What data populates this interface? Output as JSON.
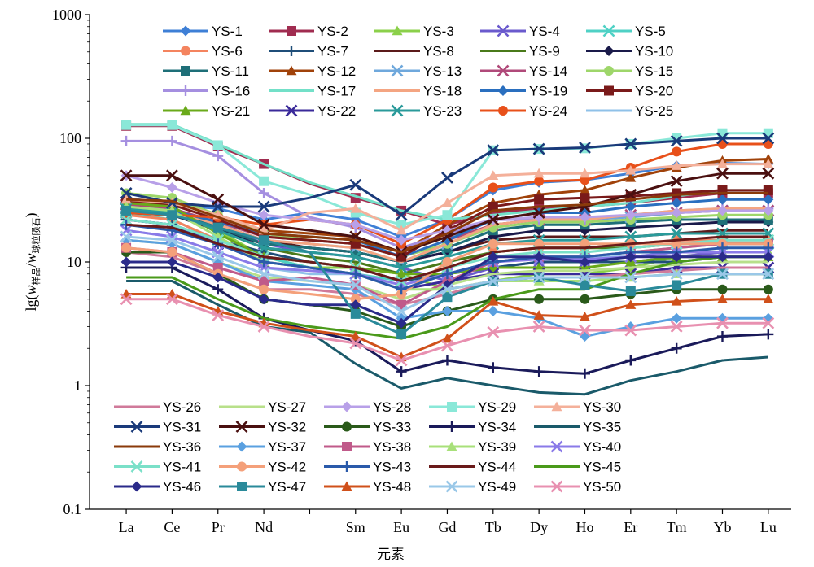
{
  "chart_data": {
    "type": "line",
    "xlabel": "元素",
    "ylabel": {
      "prefix": "lg(",
      "w1": "w",
      "sub1": "样品",
      "slash": "/",
      "w2": "w",
      "sub2": "球粒陨石",
      "suffix": ")"
    },
    "y_scale": "log",
    "ylim": [
      0.1,
      1000
    ],
    "y_ticks": [
      "0.1",
      "1",
      "10",
      "100",
      "1000"
    ],
    "categories": [
      "La",
      "Ce",
      "Pr",
      "Nd",
      "",
      "Sm",
      "Eu",
      "Gd",
      "Tb",
      "Dy",
      "Ho",
      "Er",
      "Tm",
      "Yb",
      "Lu"
    ],
    "x_tick_labels": [
      "La",
      "Ce",
      "Pr",
      "Nd",
      "Sm",
      "Eu",
      "Gd",
      "Tb",
      "Dy",
      "Ho",
      "Er",
      "Tm",
      "Yb",
      "Lu"
    ],
    "grid": false,
    "legend": "top and bottom inside plot",
    "series": [
      {
        "name": "YS-1",
        "color": "#3e7fd6",
        "marker": "diamond",
        "values": [
          33,
          29,
          27,
          22,
          25,
          22,
          16,
          22,
          38,
          44,
          46,
          52,
          60,
          63,
          62
        ]
      },
      {
        "name": "YS-2",
        "color": "#a02c50",
        "marker": "square",
        "values": [
          126,
          126,
          86,
          62,
          43,
          33,
          26,
          20,
          25,
          27,
          28,
          30,
          33,
          36,
          36
        ]
      },
      {
        "name": "YS-3",
        "color": "#8bd04a",
        "marker": "triangle",
        "values": [
          30,
          28,
          18,
          11,
          9,
          9,
          8,
          6,
          7,
          8,
          8,
          9,
          11,
          12,
          12
        ]
      },
      {
        "name": "YS-4",
        "color": "#6a5acd",
        "marker": "x",
        "values": [
          27,
          25,
          20,
          14,
          12,
          11,
          9,
          7,
          9,
          10,
          10,
          10,
          11,
          12,
          12
        ]
      },
      {
        "name": "YS-5",
        "color": "#4fd1c5",
        "marker": "x",
        "values": [
          25,
          22,
          15,
          11,
          9,
          8,
          7,
          8,
          10,
          11,
          11,
          12,
          13,
          14,
          14
        ]
      },
      {
        "name": "YS-6",
        "color": "#f4845f",
        "marker": "circle",
        "values": [
          24,
          22,
          15,
          11,
          10,
          9,
          7,
          9,
          12,
          13,
          13,
          14,
          15,
          15,
          15
        ]
      },
      {
        "name": "YS-7",
        "color": "#1f4e79",
        "marker": "plus",
        "values": [
          22,
          20,
          15,
          12,
          10,
          9,
          7,
          8,
          9,
          10,
          10,
          10,
          10,
          11,
          11
        ]
      },
      {
        "name": "YS-8",
        "color": "#5b1a1a",
        "marker": "none",
        "values": [
          30,
          27,
          20,
          15,
          13,
          12,
          10,
          12,
          15,
          16,
          16,
          16,
          17,
          18,
          18
        ]
      },
      {
        "name": "YS-9",
        "color": "#4a7a1a",
        "marker": "none",
        "values": [
          26,
          25,
          18,
          13,
          11,
          10,
          8,
          10,
          12,
          13,
          13,
          13,
          14,
          14,
          14
        ]
      },
      {
        "name": "YS-10",
        "color": "#1a1a4a",
        "marker": "diamond",
        "values": [
          25,
          24,
          18,
          14,
          13,
          12,
          10,
          12,
          16,
          18,
          18,
          19,
          20,
          21,
          21
        ]
      },
      {
        "name": "YS-11",
        "color": "#1e6f78",
        "marker": "square",
        "values": [
          27,
          26,
          19,
          14,
          13,
          12,
          10,
          13,
          18,
          20,
          20,
          21,
          22,
          22,
          22
        ]
      },
      {
        "name": "YS-12",
        "color": "#a0420a",
        "marker": "triangle",
        "values": [
          32,
          30,
          24,
          18,
          17,
          16,
          12,
          20,
          30,
          35,
          38,
          48,
          58,
          66,
          68
        ]
      },
      {
        "name": "YS-13",
        "color": "#6fa8dc",
        "marker": "x",
        "values": [
          28,
          26,
          20,
          15,
          14,
          13,
          10,
          14,
          20,
          22,
          22,
          23,
          25,
          26,
          26
        ]
      },
      {
        "name": "YS-14",
        "color": "#b04a7a",
        "marker": "x",
        "values": [
          29,
          27,
          21,
          16,
          15,
          14,
          11,
          15,
          20,
          22,
          22,
          24,
          25,
          26,
          26
        ]
      },
      {
        "name": "YS-15",
        "color": "#9ed66a",
        "marker": "circle",
        "values": [
          36,
          33,
          24,
          17,
          15,
          14,
          11,
          14,
          19,
          21,
          21,
          22,
          23,
          24,
          24
        ]
      },
      {
        "name": "YS-16",
        "color": "#a58fe0",
        "marker": "plus",
        "values": [
          95,
          95,
          72,
          36,
          23,
          19,
          13,
          17,
          22,
          22,
          22,
          24,
          26,
          27,
          27
        ]
      },
      {
        "name": "YS-17",
        "color": "#73e0c8",
        "marker": "none",
        "values": [
          130,
          130,
          90,
          62,
          44,
          34,
          26,
          22,
          24,
          26,
          28,
          30,
          34,
          38,
          38
        ]
      },
      {
        "name": "YS-18",
        "color": "#f4a582",
        "marker": "none",
        "values": [
          28,
          26,
          20,
          15,
          14,
          13,
          10,
          14,
          20,
          22,
          22,
          24,
          26,
          27,
          27
        ]
      },
      {
        "name": "YS-19",
        "color": "#2a6fbf",
        "marker": "diamond",
        "values": [
          28,
          26,
          21,
          17,
          16,
          15,
          11,
          15,
          22,
          25,
          25,
          28,
          30,
          32,
          32
        ]
      },
      {
        "name": "YS-20",
        "color": "#7a1a1a",
        "marker": "square",
        "values": [
          31,
          29,
          22,
          16,
          15,
          14,
          11,
          18,
          28,
          32,
          33,
          34,
          36,
          38,
          38
        ]
      },
      {
        "name": "YS-21",
        "color": "#6aaa1a",
        "marker": "triangle",
        "values": [
          30,
          28,
          17,
          11,
          10,
          9,
          8,
          8,
          9,
          9,
          9,
          10,
          11,
          11,
          11
        ]
      },
      {
        "name": "YS-22",
        "color": "#3a2a9a",
        "marker": "x",
        "values": [
          22,
          20,
          14,
          10,
          9,
          8,
          6,
          7,
          8,
          8,
          8,
          8,
          9,
          9,
          9
        ]
      },
      {
        "name": "YS-23",
        "color": "#2a9a9a",
        "marker": "x",
        "values": [
          27,
          25,
          18,
          13,
          12,
          11,
          9,
          11,
          14,
          15,
          15,
          16,
          17,
          17,
          17
        ]
      },
      {
        "name": "YS-24",
        "color": "#e8501a",
        "marker": "circle",
        "values": [
          25,
          24,
          23,
          20,
          22,
          20,
          14,
          22,
          40,
          45,
          46,
          58,
          78,
          90,
          90
        ]
      },
      {
        "name": "YS-25",
        "color": "#8fc1e8",
        "marker": "none",
        "values": [
          18,
          16,
          12,
          9,
          8,
          8,
          6,
          8,
          10,
          11,
          11,
          11,
          12,
          12,
          12
        ]
      },
      {
        "name": "YS-26",
        "color": "#d07a9a",
        "marker": "none",
        "values": [
          12,
          11,
          8,
          6,
          6,
          5.5,
          4.5,
          5.5,
          7,
          7.5,
          7.5,
          8,
          8.5,
          9,
          9
        ]
      },
      {
        "name": "YS-27",
        "color": "#b8e08a",
        "marker": "none",
        "values": [
          15,
          14,
          10,
          7.5,
          7,
          6.5,
          5,
          6.5,
          8,
          8.5,
          8.5,
          9,
          9.5,
          10,
          10
        ]
      },
      {
        "name": "YS-28",
        "color": "#b8a0e8",
        "marker": "diamond",
        "values": [
          50,
          40,
          30,
          24,
          22,
          20,
          15,
          18,
          22,
          23,
          23,
          24,
          25,
          26,
          26
        ]
      },
      {
        "name": "YS-29",
        "color": "#8ae8d8",
        "marker": "square",
        "values": [
          128,
          128,
          88,
          45,
          35,
          25,
          20,
          24,
          80,
          82,
          83,
          90,
          100,
          110,
          110
        ]
      },
      {
        "name": "YS-30",
        "color": "#f4b09a",
        "marker": "triangle",
        "values": [
          32,
          30,
          24,
          18,
          25,
          27,
          18,
          30,
          50,
          52,
          52,
          55,
          60,
          62,
          62
        ]
      },
      {
        "name": "YS-31",
        "color": "#1a3a7a",
        "marker": "x",
        "values": [
          36,
          30,
          28,
          28,
          33,
          42,
          24,
          48,
          80,
          82,
          84,
          90,
          95,
          100,
          100
        ]
      },
      {
        "name": "YS-32",
        "color": "#4a1010",
        "marker": "x",
        "values": [
          50,
          50,
          32,
          20,
          18,
          16,
          12,
          16,
          22,
          25,
          28,
          35,
          45,
          52,
          52
        ]
      },
      {
        "name": "YS-33",
        "color": "#2a5a1a",
        "marker": "circle",
        "values": [
          12,
          12,
          8,
          5,
          4.5,
          4,
          3,
          4,
          5,
          5,
          5,
          5.5,
          6,
          6,
          6
        ]
      },
      {
        "name": "YS-34",
        "color": "#1a1a5a",
        "marker": "plus",
        "values": [
          9,
          9,
          6,
          3.5,
          2.8,
          2.3,
          1.3,
          1.6,
          1.4,
          1.3,
          1.25,
          1.6,
          2,
          2.5,
          2.6
        ]
      },
      {
        "name": "YS-35",
        "color": "#1a5a6a",
        "marker": "none",
        "values": [
          7,
          7,
          4.5,
          3,
          2.7,
          1.5,
          0.95,
          1.15,
          1,
          0.88,
          0.85,
          1.1,
          1.3,
          1.6,
          1.7
        ]
      },
      {
        "name": "YS-36",
        "color": "#8a3a0a",
        "marker": "none",
        "values": [
          32,
          31,
          23,
          17,
          16,
          15,
          12,
          17,
          26,
          28,
          29,
          32,
          35,
          36,
          36
        ]
      },
      {
        "name": "YS-37",
        "color": "#5aa0e0",
        "marker": "diamond",
        "values": [
          15,
          14,
          10,
          7,
          6.5,
          6,
          3.5,
          4,
          4,
          3.5,
          2.5,
          3,
          3.5,
          3.5,
          3.5
        ]
      },
      {
        "name": "YS-38",
        "color": "#c05a8a",
        "marker": "square",
        "values": [
          13,
          12,
          9,
          7,
          7.5,
          6.5,
          4.5,
          7,
          10,
          11,
          11,
          12,
          13,
          14,
          14
        ]
      },
      {
        "name": "YS-39",
        "color": "#a8e07a",
        "marker": "triangle",
        "values": [
          28,
          26,
          16,
          10,
          9,
          8,
          6,
          6,
          7,
          7,
          7,
          7.5,
          8,
          8,
          8
        ]
      },
      {
        "name": "YS-40",
        "color": "#8a7ae8",
        "marker": "x",
        "values": [
          18,
          16,
          12,
          9,
          8.5,
          8,
          6.5,
          8,
          10,
          10.5,
          10.5,
          11,
          12,
          12,
          12
        ]
      },
      {
        "name": "YS-41",
        "color": "#7ae0c8",
        "marker": "x",
        "values": [
          22,
          20,
          15,
          11,
          10,
          9,
          7,
          9,
          11,
          12,
          12,
          13,
          14,
          15,
          15
        ]
      },
      {
        "name": "YS-42",
        "color": "#f4a07a",
        "marker": "circle",
        "values": [
          13,
          12,
          8,
          6,
          5.5,
          5,
          5.5,
          10,
          14,
          14,
          14,
          14,
          14,
          14,
          14
        ]
      },
      {
        "name": "YS-43",
        "color": "#2a5aaa",
        "marker": "plus",
        "values": [
          20,
          18,
          14,
          10,
          9,
          8,
          6,
          8,
          10,
          11,
          11,
          12,
          12,
          13,
          13
        ]
      },
      {
        "name": "YS-44",
        "color": "#6a1a1a",
        "marker": "none",
        "values": [
          20,
          19,
          14,
          11,
          10,
          9,
          7,
          9,
          12,
          13,
          13,
          14,
          15,
          16,
          16
        ]
      },
      {
        "name": "YS-45",
        "color": "#4a9a1a",
        "marker": "none",
        "values": [
          7.5,
          7.5,
          5,
          3.5,
          3,
          2.7,
          2.4,
          3,
          5,
          6,
          6,
          8,
          10,
          11,
          11
        ]
      },
      {
        "name": "YS-46",
        "color": "#2a2a8a",
        "marker": "diamond",
        "values": [
          10,
          10,
          7.5,
          5,
          4.5,
          4.5,
          3.2,
          6.5,
          11,
          11,
          10,
          11,
          11,
          11,
          11
        ]
      },
      {
        "name": "YS-47",
        "color": "#2a8a9a",
        "marker": "square",
        "values": [
          26,
          24,
          19,
          15,
          12,
          3.8,
          2.6,
          5.2,
          7,
          7.5,
          6.5,
          5.8,
          6.5,
          8,
          8
        ]
      },
      {
        "name": "YS-48",
        "color": "#d0501a",
        "marker": "triangle",
        "values": [
          5.5,
          5.5,
          4,
          3.2,
          2.8,
          2.5,
          1.7,
          2.4,
          4.8,
          3.7,
          3.6,
          4.5,
          4.8,
          5,
          5
        ]
      },
      {
        "name": "YS-49",
        "color": "#9ac8e8",
        "marker": "x",
        "values": [
          16,
          15,
          11,
          8,
          7,
          6.5,
          4,
          6,
          7,
          7.5,
          7.5,
          7.5,
          8,
          8,
          8
        ]
      },
      {
        "name": "YS-50",
        "color": "#e890b0",
        "marker": "x",
        "values": [
          5,
          5,
          3.7,
          3,
          2.5,
          2.2,
          1.6,
          2.1,
          2.7,
          3,
          2.8,
          2.8,
          3,
          3.2,
          3.2
        ]
      }
    ]
  }
}
